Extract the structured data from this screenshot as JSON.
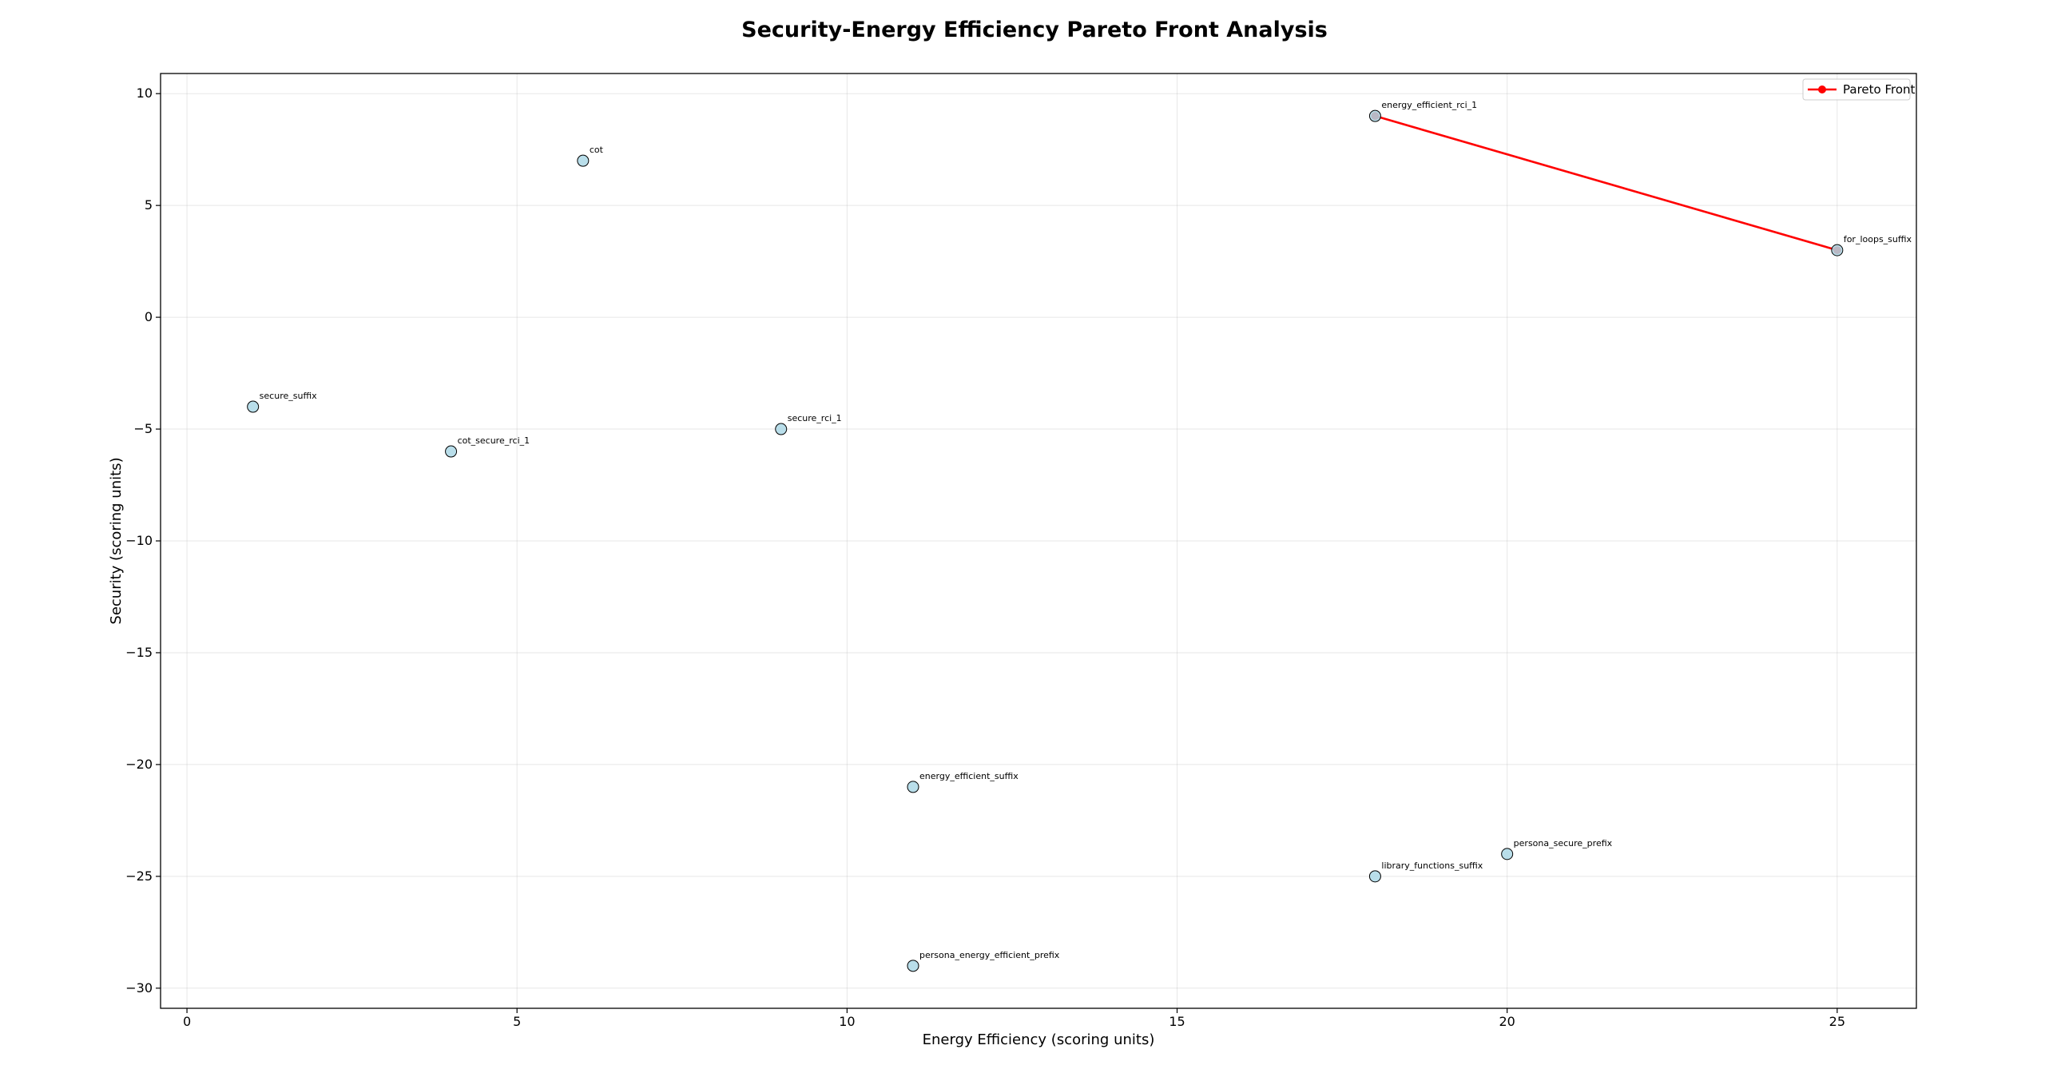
{
  "chart_data": {
    "type": "scatter",
    "title": "Security-Energy Efficiency Pareto Front Analysis",
    "xlabel": "Energy Efficiency (scoring units)",
    "ylabel": "Security (scoring units)",
    "xlim": [
      -0.4,
      26.2
    ],
    "ylim": [
      -30.9,
      10.9
    ],
    "xticks": [
      0,
      5,
      10,
      15,
      20,
      25
    ],
    "yticks": [
      10,
      5,
      0,
      -5,
      -10,
      -15,
      -20,
      -25,
      -30
    ],
    "grid": true,
    "legend_position": "top-right",
    "points": [
      {
        "label": "cot",
        "x": 6,
        "y": 7
      },
      {
        "label": "secure_suffix",
        "x": 1,
        "y": -4
      },
      {
        "label": "cot_secure_rci_1",
        "x": 4,
        "y": -6
      },
      {
        "label": "secure_rci_1",
        "x": 9,
        "y": -5
      },
      {
        "label": "energy_efficient_rci_1",
        "x": 18,
        "y": 9
      },
      {
        "label": "for_loops_suffix",
        "x": 25,
        "y": 3
      },
      {
        "label": "energy_efficient_suffix",
        "x": 11,
        "y": -21
      },
      {
        "label": "persona_secure_prefix",
        "x": 20,
        "y": -24
      },
      {
        "label": "library_functions_suffix",
        "x": 18,
        "y": -25
      },
      {
        "label": "persona_energy_efficient_prefix",
        "x": 11,
        "y": -29
      }
    ],
    "series": [
      {
        "name": "Pareto Front",
        "color": "#ff0000",
        "points": [
          {
            "x": 18,
            "y": 9
          },
          {
            "x": 25,
            "y": 3
          }
        ]
      }
    ],
    "colors": {
      "point_fill": "#add8e6",
      "point_stroke": "#000000",
      "pareto": "#ff0000"
    }
  }
}
